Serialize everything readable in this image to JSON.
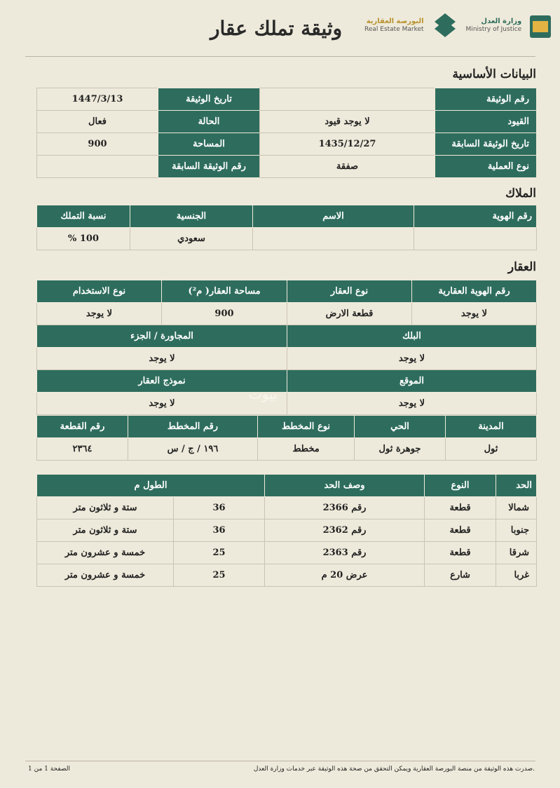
{
  "header": {
    "title": "وثيقة تملك عقار",
    "market_logo_ar": "البورصة العقارية",
    "market_logo_en": "Real Estate Market",
    "ministry_logo_ar": "وزارة العدل",
    "ministry_logo_en": "Ministry of Justice"
  },
  "basic": {
    "title": "البيانات الأساسية",
    "rows": [
      [
        "رقم الوثيقة",
        "",
        "تاريخ الوثيقة",
        "1447/3/13"
      ],
      [
        "القيود",
        "لا يوجد قيود",
        "الحالة",
        "فعال"
      ],
      [
        "تاريخ الوثيقة السابقة",
        "1435/12/27",
        "المساحة",
        "900"
      ],
      [
        "نوع العملية",
        "صفقة",
        "رقم الوثيقة السابقة",
        ""
      ]
    ]
  },
  "owners": {
    "title": "الملاك",
    "headers": [
      "رقم الهوية",
      "الاسم",
      "الجنسية",
      "نسبة التملك"
    ],
    "row": [
      "",
      "",
      "سعودي",
      "100 %"
    ]
  },
  "property": {
    "title": "العقار",
    "h1": [
      "رقم الهوية العقارية",
      "نوع العقار",
      "مساحة العقار( م²)",
      "نوع الاستخدام"
    ],
    "v1": [
      "لا يوجد",
      "قطعة الارض",
      "900",
      "لا يوجد"
    ],
    "h2": [
      "البلك",
      "المجاورة / الجزء"
    ],
    "v2": [
      "لا يوجد",
      "لا يوجد"
    ],
    "h3": [
      "الموقع",
      "نموذج العقار"
    ],
    "v3": [
      "لا يوجد",
      "لا يوجد"
    ],
    "h4": [
      "المدينة",
      "الحي",
      "نوع المخطط",
      "رقم المخطط",
      "رقم القطعة"
    ],
    "v4": [
      "ثول",
      "جوهرة ثول",
      "مخطط",
      "١٩٦ / ج / س",
      "٢٣٦٤"
    ]
  },
  "bounds": {
    "headers": [
      "الحد",
      "النوع",
      "وصف الحد",
      "الطول م"
    ],
    "rows": [
      [
        "شمالا",
        "قطعة",
        "رقم 2366",
        "36",
        "ستة و ثلاثون متر"
      ],
      [
        "جنوبا",
        "قطعة",
        "رقم 2362",
        "36",
        "ستة و ثلاثون متر"
      ],
      [
        "شرقا",
        "قطعة",
        "رقم 2363",
        "25",
        "خمسة و عشرون متر"
      ],
      [
        "غربا",
        "شارع",
        "عرض 20 م",
        "25",
        "خمسة و عشرون متر"
      ]
    ]
  },
  "watermark": "بيوت",
  "footer": {
    "note": "صدرت هذه الوثيقة من منصة البورصة العقارية ويمكن التحقق من صحة هذه الوثيقة عبر خدمات وزارة العدل.",
    "page": "الصفحة 1 من 1"
  }
}
